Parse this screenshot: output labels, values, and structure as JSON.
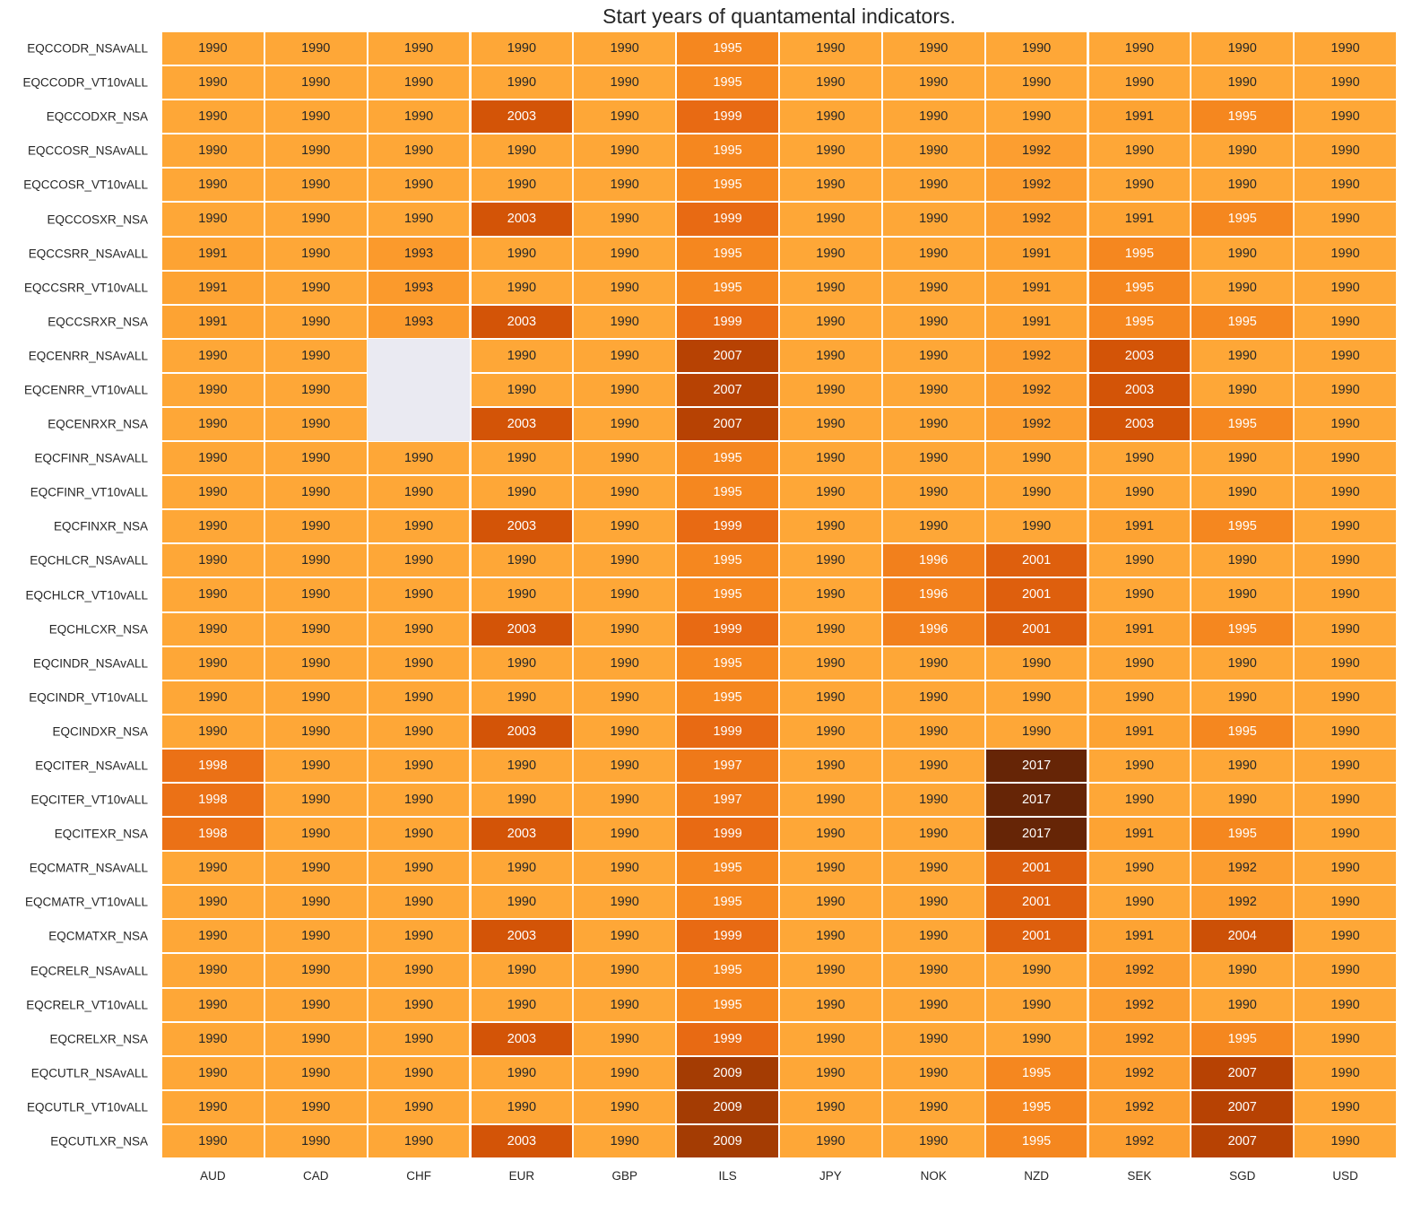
{
  "chart_data": {
    "type": "heatmap",
    "title": "Start years of quantamental indicators.",
    "columns": [
      "AUD",
      "CAD",
      "CHF",
      "EUR",
      "GBP",
      "ILS",
      "JPY",
      "NOK",
      "NZD",
      "SEK",
      "SGD",
      "USD"
    ],
    "rows": [
      "EQCCODR_NSAvALL",
      "EQCCODR_VT10vALL",
      "EQCCODXR_NSA",
      "EQCCOSR_NSAvALL",
      "EQCCOSR_VT10vALL",
      "EQCCOSXR_NSA",
      "EQCCSRR_NSAvALL",
      "EQCCSRR_VT10vALL",
      "EQCCSRXR_NSA",
      "EQCENRR_NSAvALL",
      "EQCENRR_VT10vALL",
      "EQCENRXR_NSA",
      "EQCFINR_NSAvALL",
      "EQCFINR_VT10vALL",
      "EQCFINXR_NSA",
      "EQCHLCR_NSAvALL",
      "EQCHLCR_VT10vALL",
      "EQCHLCXR_NSA",
      "EQCINDR_NSAvALL",
      "EQCINDR_VT10vALL",
      "EQCINDXR_NSA",
      "EQCITER_NSAvALL",
      "EQCITER_VT10vALL",
      "EQCITEXR_NSA",
      "EQCMATR_NSAvALL",
      "EQCMATR_VT10vALL",
      "EQCMATXR_NSA",
      "EQCRELR_NSAvALL",
      "EQCRELR_VT10vALL",
      "EQCRELXR_NSA",
      "EQCUTLR_NSAvALL",
      "EQCUTLR_VT10vALL",
      "EQCUTLXR_NSA"
    ],
    "values": [
      [
        1990,
        1990,
        1990,
        1990,
        1990,
        1995,
        1990,
        1990,
        1990,
        1990,
        1990,
        1990
      ],
      [
        1990,
        1990,
        1990,
        1990,
        1990,
        1995,
        1990,
        1990,
        1990,
        1990,
        1990,
        1990
      ],
      [
        1990,
        1990,
        1990,
        2003,
        1990,
        1999,
        1990,
        1990,
        1990,
        1991,
        1995,
        1990
      ],
      [
        1990,
        1990,
        1990,
        1990,
        1990,
        1995,
        1990,
        1990,
        1992,
        1990,
        1990,
        1990
      ],
      [
        1990,
        1990,
        1990,
        1990,
        1990,
        1995,
        1990,
        1990,
        1992,
        1990,
        1990,
        1990
      ],
      [
        1990,
        1990,
        1990,
        2003,
        1990,
        1999,
        1990,
        1990,
        1992,
        1991,
        1995,
        1990
      ],
      [
        1991,
        1990,
        1993,
        1990,
        1990,
        1995,
        1990,
        1990,
        1991,
        1995,
        1990,
        1990
      ],
      [
        1991,
        1990,
        1993,
        1990,
        1990,
        1995,
        1990,
        1990,
        1991,
        1995,
        1990,
        1990
      ],
      [
        1991,
        1990,
        1993,
        2003,
        1990,
        1999,
        1990,
        1990,
        1991,
        1995,
        1995,
        1990
      ],
      [
        1990,
        1990,
        null,
        1990,
        1990,
        2007,
        1990,
        1990,
        1992,
        2003,
        1990,
        1990
      ],
      [
        1990,
        1990,
        null,
        1990,
        1990,
        2007,
        1990,
        1990,
        1992,
        2003,
        1990,
        1990
      ],
      [
        1990,
        1990,
        null,
        2003,
        1990,
        2007,
        1990,
        1990,
        1992,
        2003,
        1995,
        1990
      ],
      [
        1990,
        1990,
        1990,
        1990,
        1990,
        1995,
        1990,
        1990,
        1990,
        1990,
        1990,
        1990
      ],
      [
        1990,
        1990,
        1990,
        1990,
        1990,
        1995,
        1990,
        1990,
        1990,
        1990,
        1990,
        1990
      ],
      [
        1990,
        1990,
        1990,
        2003,
        1990,
        1999,
        1990,
        1990,
        1990,
        1991,
        1995,
        1990
      ],
      [
        1990,
        1990,
        1990,
        1990,
        1990,
        1995,
        1990,
        1996,
        2001,
        1990,
        1990,
        1990
      ],
      [
        1990,
        1990,
        1990,
        1990,
        1990,
        1995,
        1990,
        1996,
        2001,
        1990,
        1990,
        1990
      ],
      [
        1990,
        1990,
        1990,
        2003,
        1990,
        1999,
        1990,
        1996,
        2001,
        1991,
        1995,
        1990
      ],
      [
        1990,
        1990,
        1990,
        1990,
        1990,
        1995,
        1990,
        1990,
        1990,
        1990,
        1990,
        1990
      ],
      [
        1990,
        1990,
        1990,
        1990,
        1990,
        1995,
        1990,
        1990,
        1990,
        1990,
        1990,
        1990
      ],
      [
        1990,
        1990,
        1990,
        2003,
        1990,
        1999,
        1990,
        1990,
        1990,
        1991,
        1995,
        1990
      ],
      [
        1998,
        1990,
        1990,
        1990,
        1990,
        1997,
        1990,
        1990,
        2017,
        1990,
        1990,
        1990
      ],
      [
        1998,
        1990,
        1990,
        1990,
        1990,
        1997,
        1990,
        1990,
        2017,
        1990,
        1990,
        1990
      ],
      [
        1998,
        1990,
        1990,
        2003,
        1990,
        1999,
        1990,
        1990,
        2017,
        1991,
        1995,
        1990
      ],
      [
        1990,
        1990,
        1990,
        1990,
        1990,
        1995,
        1990,
        1990,
        2001,
        1990,
        1992,
        1990
      ],
      [
        1990,
        1990,
        1990,
        1990,
        1990,
        1995,
        1990,
        1990,
        2001,
        1990,
        1992,
        1990
      ],
      [
        1990,
        1990,
        1990,
        2003,
        1990,
        1999,
        1990,
        1990,
        2001,
        1991,
        2004,
        1990
      ],
      [
        1990,
        1990,
        1990,
        1990,
        1990,
        1995,
        1990,
        1990,
        1990,
        1992,
        1990,
        1990
      ],
      [
        1990,
        1990,
        1990,
        1990,
        1990,
        1995,
        1990,
        1990,
        1990,
        1992,
        1990,
        1990
      ],
      [
        1990,
        1990,
        1990,
        2003,
        1990,
        1999,
        1990,
        1990,
        1990,
        1992,
        1995,
        1990
      ],
      [
        1990,
        1990,
        1990,
        1990,
        1990,
        2009,
        1990,
        1990,
        1995,
        1992,
        2007,
        1990
      ],
      [
        1990,
        1990,
        1990,
        1990,
        1990,
        2009,
        1990,
        1990,
        1995,
        1992,
        2007,
        1990
      ],
      [
        1990,
        1990,
        1990,
        2003,
        1990,
        2009,
        1990,
        1990,
        1995,
        1992,
        2007,
        1990
      ]
    ],
    "colormap": "YlOrBr",
    "missing_color": "#eaeaf2",
    "annotated": true,
    "legend": "none"
  }
}
